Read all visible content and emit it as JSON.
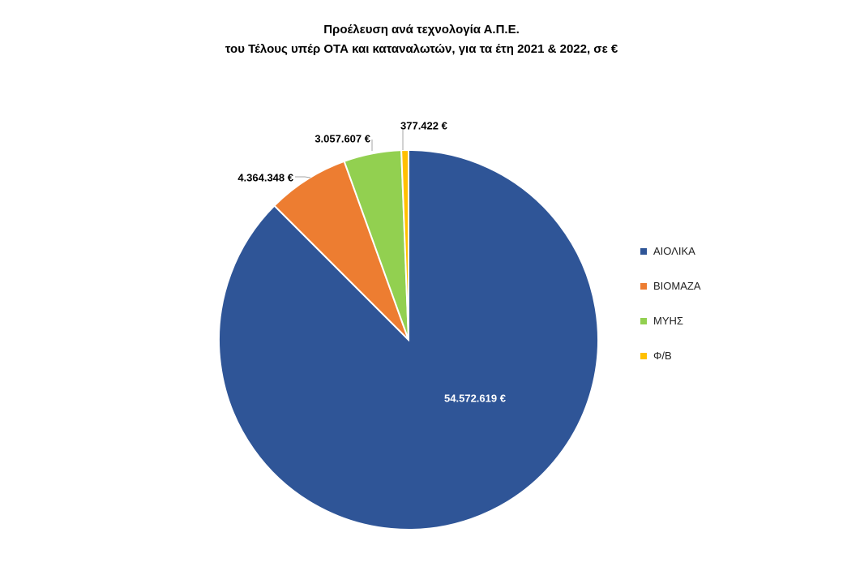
{
  "chart_data": {
    "type": "pie",
    "title": "Προέλευση ανά τεχνολογία Α.Π.Ε.",
    "subtitle": "του Τέλους υπέρ ΟΤΑ και καταναλωτών, για τα έτη 2021 & 2022, σε €",
    "categories": [
      "ΑΙΟΛΙΚΑ",
      "ΒΙΟΜΑΖΑ",
      "ΜΥΗΣ",
      "Φ/Β"
    ],
    "values": [
      54572619,
      4364348,
      3057607,
      377422
    ],
    "value_labels": [
      "54.572.619 €",
      "4.364.348 €",
      "3.057.607 €",
      "377.422 €"
    ],
    "colors": [
      "#2F5597",
      "#ED7D31",
      "#92D050",
      "#FFC000"
    ],
    "legend_position": "right"
  }
}
